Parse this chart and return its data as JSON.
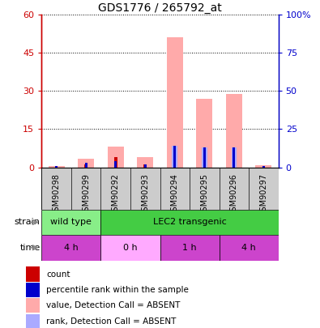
{
  "title": "GDS1776 / 265792_at",
  "samples": [
    "GSM90298",
    "GSM90299",
    "GSM90292",
    "GSM90293",
    "GSM90294",
    "GSM90295",
    "GSM90296",
    "GSM90297"
  ],
  "count_values": [
    0,
    1,
    4,
    1,
    0,
    0,
    0,
    0
  ],
  "rank_values": [
    1,
    3,
    4,
    2,
    14,
    13,
    13,
    1
  ],
  "absent_count_values": [
    0.5,
    3.5,
    8.0,
    4.0,
    51.0,
    27.0,
    29.0,
    0.8
  ],
  "absent_rank_values": [
    0,
    0,
    0,
    0,
    14,
    13,
    13,
    0
  ],
  "count_color": "#cc0000",
  "rank_color": "#0000cc",
  "absent_count_color": "#ffaaaa",
  "absent_rank_color": "#aaaaff",
  "ylim_left": [
    0,
    60
  ],
  "ylim_right": [
    0,
    100
  ],
  "yticks_left": [
    0,
    15,
    30,
    45,
    60
  ],
  "yticks_right": [
    0,
    25,
    50,
    75,
    100
  ],
  "ytick_labels_left": [
    "0",
    "15",
    "30",
    "45",
    "60"
  ],
  "ytick_labels_right": [
    "0",
    "25",
    "50",
    "75",
    "100%"
  ],
  "strain_groups": [
    {
      "label": "wild type",
      "start": 0,
      "end": 2,
      "color": "#88ee88"
    },
    {
      "label": "LEC2 transgenic",
      "start": 2,
      "end": 8,
      "color": "#44cc44"
    }
  ],
  "time_groups": [
    {
      "label": "4 h",
      "start": 0,
      "end": 2,
      "color": "#cc44cc"
    },
    {
      "label": "0 h",
      "start": 2,
      "end": 4,
      "color": "#ffaaff"
    },
    {
      "label": "1 h",
      "start": 4,
      "end": 6,
      "color": "#cc44cc"
    },
    {
      "label": "4 h",
      "start": 6,
      "end": 8,
      "color": "#cc44cc"
    }
  ],
  "legend_labels": [
    "count",
    "percentile rank within the sample",
    "value, Detection Call = ABSENT",
    "rank, Detection Call = ABSENT"
  ],
  "legend_colors": [
    "#cc0000",
    "#0000cc",
    "#ffaaaa",
    "#aaaaff"
  ],
  "background_color": "#ffffff",
  "xticklabel_bg": "#cccccc"
}
